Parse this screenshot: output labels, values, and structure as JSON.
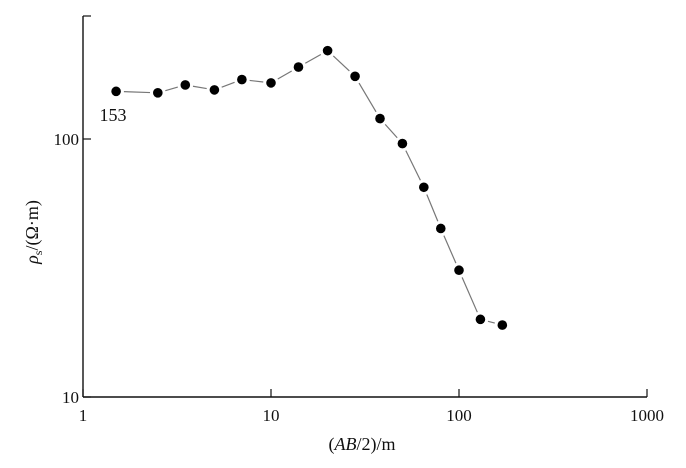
{
  "chart_data": {
    "type": "scatter",
    "xscale": "log",
    "yscale": "log",
    "xlim": [
      1,
      1000
    ],
    "ylim": [
      10,
      300
    ],
    "xticks": [
      {
        "value": 1,
        "label": "1"
      },
      {
        "value": 10,
        "label": "10"
      },
      {
        "value": 100,
        "label": "100"
      },
      {
        "value": 1000,
        "label": "1000"
      }
    ],
    "yticks": [
      {
        "value": 10,
        "label": "10"
      },
      {
        "value": 100,
        "label": "100"
      }
    ],
    "xlabel": "(AB/2)/m",
    "ylabel": "ρs/(Ω·m)",
    "grid": false,
    "annotation": {
      "text": "153",
      "x": 1.5,
      "y": 153
    },
    "series": [
      {
        "x": [
          1.5,
          2.5,
          3.5,
          5,
          7,
          10,
          14,
          20,
          28,
          38,
          50,
          65,
          80,
          100,
          130,
          170
        ],
        "y": [
          153,
          151,
          162,
          155,
          170,
          165,
          190,
          220,
          175,
          120,
          96,
          65,
          45,
          31,
          20,
          19
        ]
      }
    ]
  }
}
